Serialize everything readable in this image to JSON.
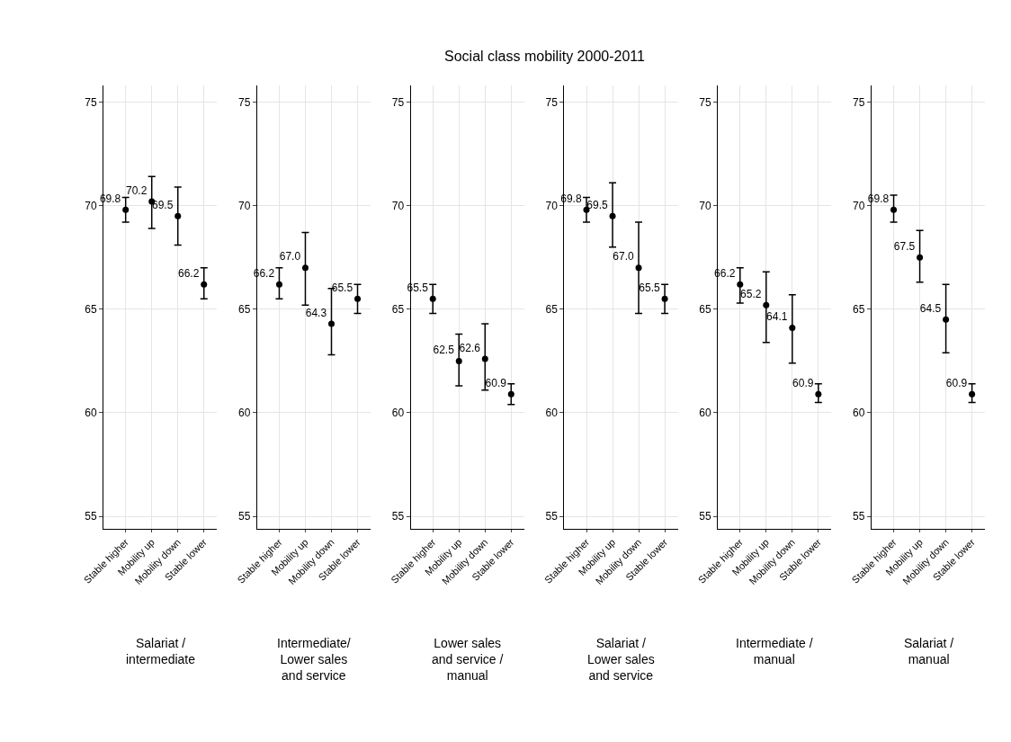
{
  "chart_data": [
    {
      "type": "other",
      "title": "Social class mobility 2000-2011"
    },
    {
      "type": "scatter",
      "xlabel": "Salariat /\nintermediate",
      "categories": [
        "Stable higher",
        "Mobility up",
        "Mobility down",
        "Stable lower"
      ],
      "values": [
        69.8,
        70.2,
        69.5,
        66.2
      ],
      "value_labels": [
        "69.8",
        "70.2",
        "69.5",
        "66.2"
      ],
      "errors": [
        [
          69.2,
          70.4
        ],
        [
          68.9,
          71.4
        ],
        [
          68.1,
          70.9
        ],
        [
          65.5,
          67.0
        ]
      ],
      "color": "#000000",
      "marker": "circle",
      "ylim": [
        54.4,
        75.8
      ],
      "yticks": [
        55,
        60,
        65,
        70,
        75
      ],
      "grid": true
    },
    {
      "type": "scatter",
      "xlabel": "Intermediate/\nLower sales\nand service",
      "categories": [
        "Stable higher",
        "Mobility up",
        "Mobility down",
        "Stable lower"
      ],
      "values": [
        66.2,
        67.0,
        64.3,
        65.5
      ],
      "value_labels": [
        "66.2",
        "67.0",
        "64.3",
        "65.5"
      ],
      "errors": [
        [
          65.5,
          67.0
        ],
        [
          65.2,
          68.7
        ],
        [
          62.8,
          66.0
        ],
        [
          64.8,
          66.2
        ]
      ],
      "color": "#000000",
      "marker": "circle",
      "ylim": [
        54.4,
        75.8
      ],
      "yticks": [
        55,
        60,
        65,
        70,
        75
      ],
      "grid": true
    },
    {
      "type": "scatter",
      "xlabel": "Lower sales\nand service /\nmanual",
      "categories": [
        "Stable higher",
        "Mobility up",
        "Mobility down",
        "Stable lower"
      ],
      "values": [
        65.5,
        62.5,
        62.6,
        60.9
      ],
      "value_labels": [
        "65.5",
        "62.5",
        "62.6",
        "60.9"
      ],
      "errors": [
        [
          64.8,
          66.2
        ],
        [
          61.3,
          63.8
        ],
        [
          61.1,
          64.3
        ],
        [
          60.4,
          61.4
        ]
      ],
      "color": "#000000",
      "marker": "circle",
      "ylim": [
        54.4,
        75.8
      ],
      "yticks": [
        55,
        60,
        65,
        70,
        75
      ],
      "grid": true
    },
    {
      "type": "scatter",
      "xlabel": "Salariat /\nLower sales\nand service",
      "categories": [
        "Stable higher",
        "Mobility up",
        "Mobility down",
        "Stable lower"
      ],
      "values": [
        69.8,
        69.5,
        67.0,
        65.5
      ],
      "value_labels": [
        "69.8",
        "69.5",
        "67.0",
        "65.5"
      ],
      "errors": [
        [
          69.2,
          70.4
        ],
        [
          68.0,
          71.1
        ],
        [
          64.8,
          69.2
        ],
        [
          64.8,
          66.2
        ]
      ],
      "color": "#000000",
      "marker": "circle",
      "ylim": [
        54.4,
        75.8
      ],
      "yticks": [
        55,
        60,
        65,
        70,
        75
      ],
      "grid": true
    },
    {
      "type": "scatter",
      "xlabel": "Intermediate /\nmanual",
      "categories": [
        "Stable higher",
        "Mobility up",
        "Mobility down",
        "Stable lower"
      ],
      "values": [
        66.2,
        65.2,
        64.1,
        60.9
      ],
      "value_labels": [
        "66.2",
        "65.2",
        "64.1",
        "60.9"
      ],
      "errors": [
        [
          65.3,
          67.0
        ],
        [
          63.4,
          66.8
        ],
        [
          62.4,
          65.7
        ],
        [
          60.5,
          61.4
        ]
      ],
      "color": "#000000",
      "marker": "circle",
      "ylim": [
        54.4,
        75.8
      ],
      "yticks": [
        55,
        60,
        65,
        70,
        75
      ],
      "grid": true
    },
    {
      "type": "scatter",
      "xlabel": "Salariat /\nmanual",
      "categories": [
        "Stable higher",
        "Mobility up",
        "Mobility down",
        "Stable lower"
      ],
      "values": [
        69.8,
        67.5,
        64.5,
        60.9
      ],
      "value_labels": [
        "69.8",
        "67.5",
        "64.5",
        "60.9"
      ],
      "errors": [
        [
          69.2,
          70.5
        ],
        [
          66.3,
          68.8
        ],
        [
          62.9,
          66.2
        ],
        [
          60.5,
          61.4
        ]
      ],
      "color": "#000000",
      "marker": "circle",
      "ylim": [
        54.4,
        75.8
      ],
      "yticks": [
        55,
        60,
        65,
        70,
        75
      ],
      "grid": true
    }
  ]
}
